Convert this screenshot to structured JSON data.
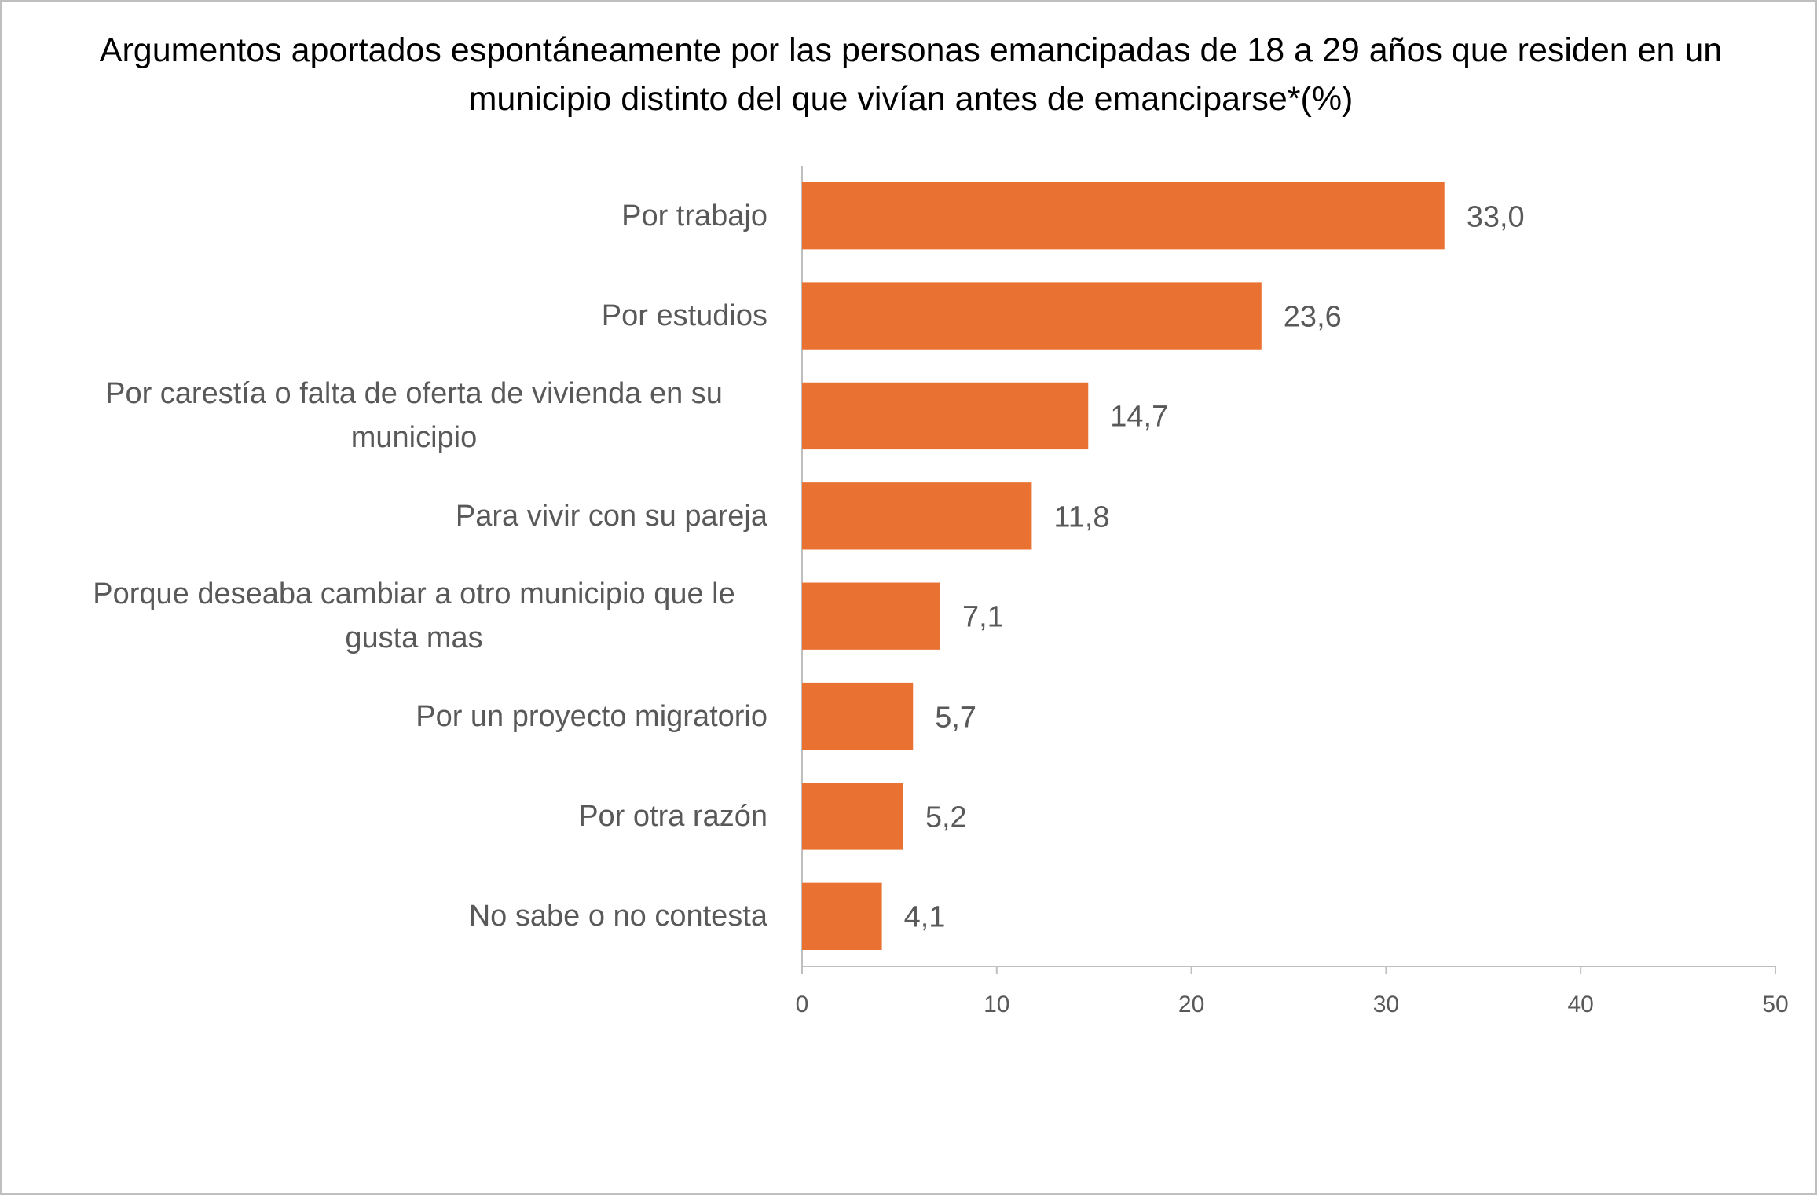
{
  "chart_data": {
    "type": "bar",
    "orientation": "horizontal",
    "title": "Argumentos  aportados espontáneamente por las personas emancipadas de 18 a 29 años que residen en un municipio distinto del que vivían antes de emanciparse*(%)",
    "categories": [
      "Por  trabajo",
      "Por estudios",
      "Por carestía o falta de oferta de vivienda en su municipio",
      "Para vivir con su pareja",
      "Porque deseaba cambiar a  otro municipio que le gusta mas",
      "Por un proyecto migratorio",
      "Por otra razón",
      "No sabe o no contesta"
    ],
    "values": [
      33.0,
      23.6,
      14.7,
      11.8,
      7.1,
      5.7,
      5.2,
      4.1
    ],
    "value_labels": [
      "33,0",
      "23,6",
      "14,7",
      "11,8",
      "7,1",
      "5,7",
      "5,2",
      "4,1"
    ],
    "color": "#e97132",
    "xlim": [
      0,
      50
    ],
    "xticks": [
      0,
      10,
      20,
      30,
      40,
      50
    ],
    "grid": false
  }
}
